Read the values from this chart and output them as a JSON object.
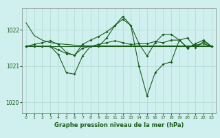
{
  "title": "Graphe pression niveau de la mer (hPa)",
  "background_color": "#cff0ee",
  "grid_color": "#b0d8d0",
  "line_color": "#1a5c1a",
  "xlim": [
    -0.5,
    23.5
  ],
  "ylim": [
    1019.7,
    1022.6
  ],
  "yticks": [
    1020,
    1021,
    1022
  ],
  "xticks": [
    0,
    1,
    2,
    3,
    4,
    5,
    6,
    7,
    8,
    9,
    10,
    11,
    12,
    13,
    14,
    15,
    16,
    17,
    18,
    19,
    20,
    21,
    22,
    23
  ],
  "hours": [
    0,
    1,
    2,
    3,
    4,
    5,
    6,
    7,
    8,
    9,
    10,
    11,
    12,
    13,
    14,
    15,
    16,
    17,
    18,
    19,
    20,
    21,
    22,
    23
  ],
  "line_flat": [
    1021.55,
    1021.55,
    1021.55,
    1021.55,
    1021.55,
    1021.55,
    1021.55,
    1021.55,
    1021.55,
    1021.55,
    1021.55,
    1021.55,
    1021.55,
    1021.55,
    1021.55,
    1021.55,
    1021.55,
    1021.55,
    1021.55,
    1021.55,
    1021.55,
    1021.55,
    1021.55,
    1021.55
  ],
  "line_sloped": [
    1022.2,
    1021.85,
    1021.72,
    1021.65,
    1021.62,
    1021.6,
    1021.58,
    1021.57,
    1021.56,
    1021.56,
    1021.56,
    1021.56,
    1021.56,
    1021.56,
    1021.56,
    1021.56,
    1021.56,
    1021.56,
    1021.56,
    1021.56,
    1021.56,
    1021.56,
    1021.56,
    1021.56
  ],
  "line_mid": [
    1021.55,
    1021.55,
    1021.55,
    1021.55,
    1021.45,
    1021.35,
    1021.3,
    1021.5,
    1021.55,
    1021.6,
    1021.65,
    1021.7,
    1021.65,
    1021.6,
    1021.62,
    1021.62,
    1021.68,
    1021.65,
    1021.72,
    1021.72,
    1021.52,
    1021.58,
    1021.62,
    1021.55
  ],
  "line_hi": [
    1021.55,
    1021.6,
    1021.65,
    1021.7,
    1021.6,
    1021.38,
    1021.3,
    1021.6,
    1021.72,
    1021.82,
    1021.95,
    1022.12,
    1022.3,
    1022.12,
    1021.62,
    1021.28,
    1021.65,
    1021.88,
    1021.88,
    1021.72,
    1021.5,
    1021.62,
    1021.72,
    1021.55
  ],
  "line_lo": [
    1021.55,
    1021.55,
    1021.55,
    1021.55,
    1021.32,
    1020.82,
    1020.78,
    1021.28,
    1021.55,
    1021.55,
    1021.78,
    1022.12,
    1022.38,
    1022.12,
    1021.0,
    1020.18,
    1020.82,
    1021.05,
    1021.12,
    1021.72,
    1021.78,
    1021.52,
    1021.68,
    1021.55
  ]
}
